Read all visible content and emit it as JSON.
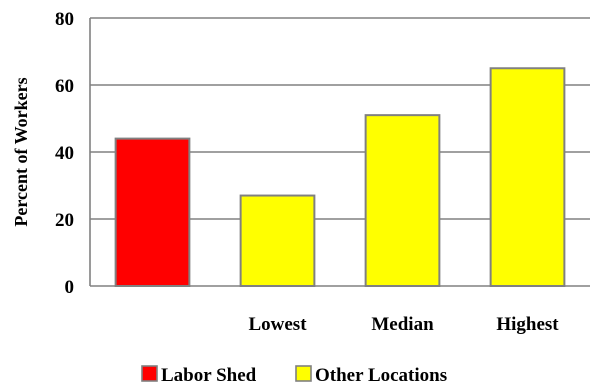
{
  "chart_data": {
    "type": "bar",
    "categories": [
      "",
      "Lowest",
      "Median",
      "Highest"
    ],
    "values": [
      44,
      27,
      51,
      65
    ],
    "bar_series": [
      "Labor Shed",
      "Other Locations",
      "Other Locations",
      "Other Locations"
    ],
    "title": "",
    "xlabel": "",
    "ylabel": "Percent of Workers",
    "ylim": [
      0,
      80
    ],
    "yticks": [
      0,
      20,
      40,
      60,
      80
    ],
    "grid": true,
    "legend_position": "bottom",
    "legend": [
      {
        "name": "Labor Shed",
        "color": "#ff0000"
      },
      {
        "name": "Other Locations",
        "color": "#ffff00"
      }
    ],
    "colors": {
      "Labor Shed": "#ff0000",
      "Other Locations": "#ffff00",
      "bar_edge": "#808080",
      "grid": "#808080"
    }
  }
}
